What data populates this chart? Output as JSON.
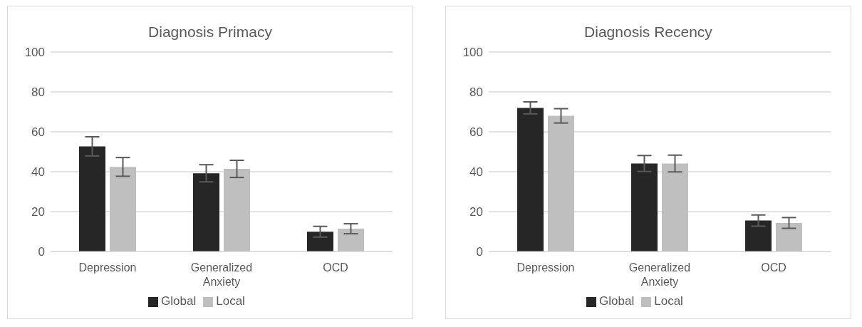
{
  "chart_data": [
    {
      "type": "bar",
      "title": "Diagnosis Primacy",
      "categories": [
        "Depression",
        "Generalized Anxiety",
        "OCD"
      ],
      "series": [
        {
          "name": "Global",
          "color": "#262626",
          "values": [
            52.7,
            39.2,
            9.9
          ],
          "errors": [
            4.8,
            4.3,
            2.7
          ]
        },
        {
          "name": "Local",
          "color": "#bfbfbf",
          "values": [
            42.4,
            41.4,
            11.4
          ],
          "errors": [
            4.7,
            4.3,
            2.5
          ]
        }
      ],
      "ylim": [
        0,
        100
      ],
      "yticks": [
        0,
        20,
        40,
        60,
        80,
        100
      ],
      "grid": "y",
      "legend": "bottom"
    },
    {
      "type": "bar",
      "title": "Diagnosis Recency",
      "categories": [
        "Depression",
        "Generalized Anxiety",
        "OCD"
      ],
      "series": [
        {
          "name": "Global",
          "color": "#262626",
          "values": [
            72,
            44.1,
            15.5
          ],
          "errors": [
            3,
            4,
            2.8
          ]
        },
        {
          "name": "Local",
          "color": "#bfbfbf",
          "values": [
            68,
            44.1,
            14.3
          ],
          "errors": [
            3.6,
            4.2,
            2.7
          ]
        }
      ],
      "ylim": [
        0,
        100
      ],
      "yticks": [
        0,
        20,
        40,
        60,
        80,
        100
      ],
      "grid": "y",
      "legend": "bottom"
    }
  ]
}
